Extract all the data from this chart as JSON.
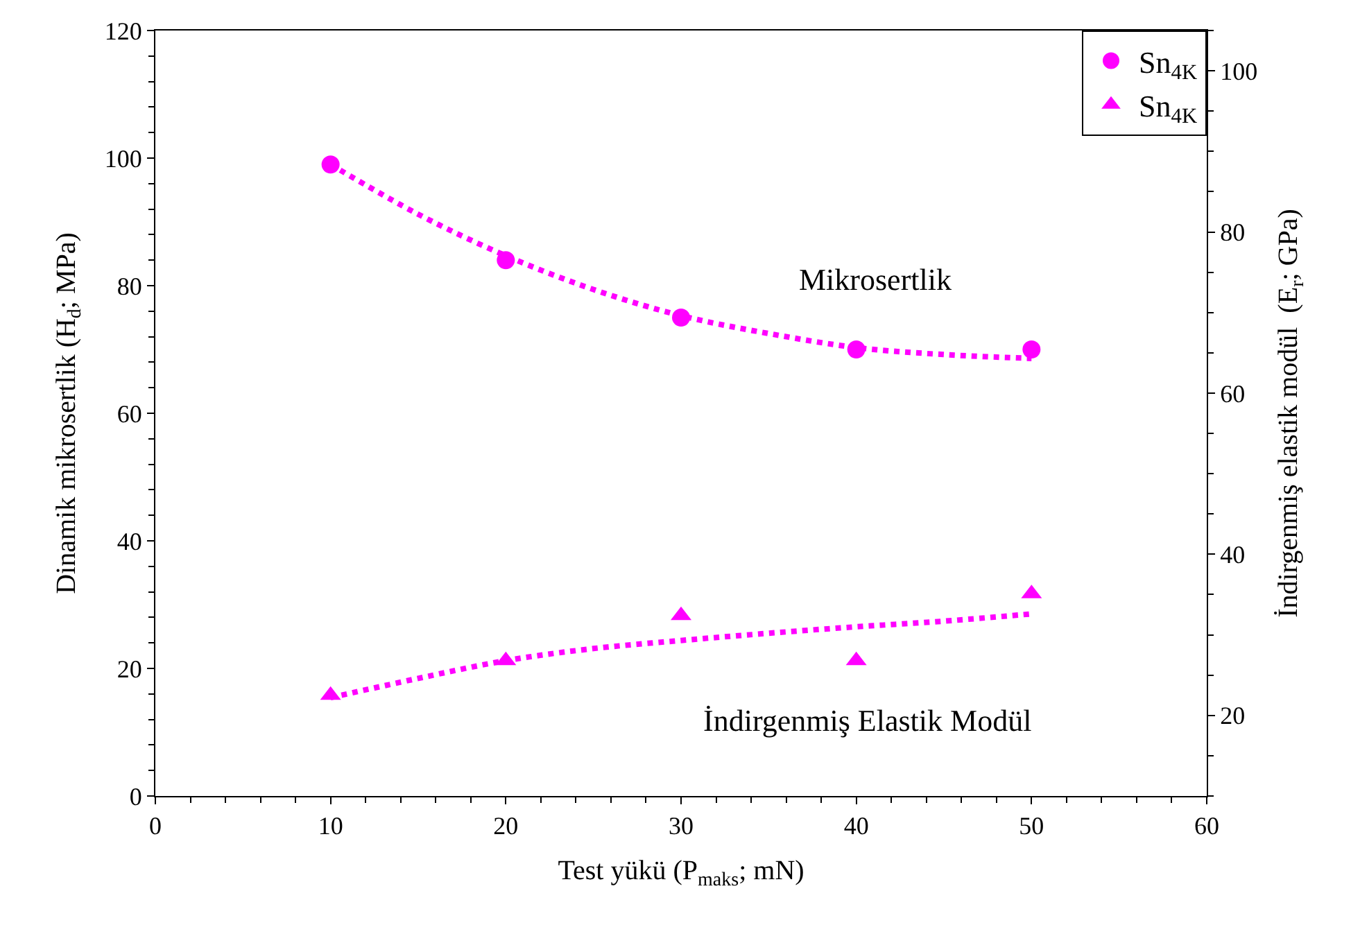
{
  "chart_data": {
    "type": "scatter",
    "xlabel": "Test yükü (P$_{maks}$; mN)",
    "ylabel": "Dinamik mikrosertlik (H$_{d}$; MPa)",
    "y2label": "İndirgenmiş elastik modül  (E$_{r}$; GPa)",
    "xlim": [
      0,
      60
    ],
    "xticks": [
      0,
      10,
      20,
      30,
      40,
      50,
      60
    ],
    "ylim": [
      0,
      120
    ],
    "yticks": [
      0,
      20,
      40,
      60,
      80,
      100,
      120
    ],
    "y2lim": [
      10,
      105
    ],
    "y2ticks": [
      20,
      40,
      60,
      80,
      100
    ],
    "legend": "top right",
    "series": [
      {
        "name": "Sn$_{4K}$",
        "type": "scatter",
        "marker": "triangle",
        "color": "#ff00ff",
        "axis": "y2",
        "x": [
          10,
          20,
          30,
          40,
          50
        ],
        "values": [
          22.5,
          26.8,
          32.4,
          26.8,
          35.1
        ]
      },
      {
        "name": "Sn$_{4K}$",
        "type": "scatter",
        "marker": "circle",
        "color": "#ff00ff",
        "x": [
          10,
          20,
          30,
          40,
          50
        ],
        "values": [
          99,
          84,
          75,
          70,
          70
        ]
      },
      {
        "type": "line",
        "line_style": "dotted",
        "color": "#ff00ff",
        "x": [
          10,
          15,
          20,
          25,
          30,
          35,
          40,
          45,
          50
        ],
        "values": [
          99,
          91.2,
          84.7,
          79.4,
          75.3,
          72.5,
          70.3,
          69.2,
          68.6
        ]
      },
      {
        "type": "line",
        "line_style": "dotted",
        "color": "#ff00ff",
        "axis": "y2",
        "x": [
          10,
          15,
          20,
          25,
          30,
          35,
          40,
          45,
          50
        ],
        "values": [
          22.2,
          24.6,
          26.8,
          28.3,
          29.3,
          30.2,
          31.0,
          31.7,
          32.6
        ]
      }
    ],
    "annotations": [
      "Mikrosertlik",
      "İndirgenmiş Elastik Modül"
    ]
  }
}
